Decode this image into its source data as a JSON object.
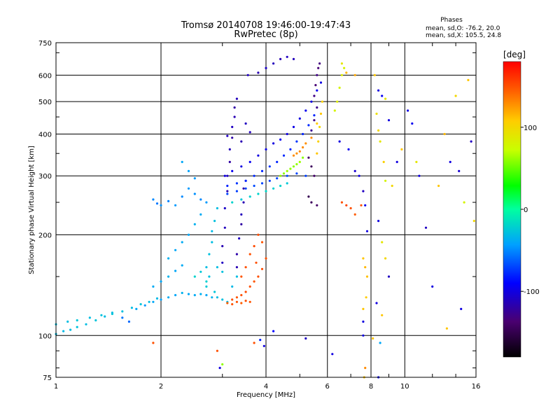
{
  "chart_data": {
    "type": "scatter",
    "title": "Tromsø 20140708 19:46:00-19:47:43",
    "subtitle": "RwPretec (8p)",
    "xlabel": "Frequency [MHz]",
    "ylabel": "Stationary phase Virtual Height [km]",
    "x_scale": "log",
    "y_scale": "log",
    "xlim": [
      1,
      16
    ],
    "ylim": [
      75,
      750
    ],
    "x_ticks": [
      1,
      2,
      4,
      6,
      8,
      10,
      16
    ],
    "x_tick_labels": [
      "1",
      "2",
      "4",
      "6",
      "8",
      "10",
      "16"
    ],
    "y_ticks": [
      75,
      100,
      200,
      300,
      400,
      500,
      600,
      750
    ],
    "y_tick_labels": [
      "75",
      "100",
      "200",
      "300",
      "400",
      "500",
      "600",
      "750"
    ],
    "grid": true,
    "stats": {
      "heading": "Phases",
      "line_o": "mean, sd,O: -76.2, 20.0",
      "line_x": "mean, sd,X: 105.5, 24.8"
    },
    "colorbar": {
      "label": "[deg]",
      "range": [
        -180,
        180
      ],
      "ticks": [
        100,
        0,
        -100
      ],
      "tick_labels": [
        "100",
        "0",
        "-100"
      ]
    },
    "points": [
      [
        1.0,
        101,
        -30
      ],
      [
        1.05,
        103,
        -32
      ],
      [
        1.1,
        104,
        -30
      ],
      [
        1.15,
        106,
        -28
      ],
      [
        1.22,
        108,
        -30
      ],
      [
        1.3,
        111,
        -27
      ],
      [
        1.38,
        114,
        -30
      ],
      [
        1.45,
        116,
        -25
      ],
      [
        1.55,
        118,
        -28
      ],
      [
        1.65,
        121,
        -30
      ],
      [
        1.75,
        124,
        -27
      ],
      [
        1.85,
        126,
        -30
      ],
      [
        1.95,
        129,
        -32
      ],
      [
        1.0,
        108,
        -28
      ],
      [
        1.08,
        110,
        -30
      ],
      [
        1.15,
        111,
        -26
      ],
      [
        1.25,
        113,
        -30
      ],
      [
        1.35,
        115,
        -28
      ],
      [
        1.45,
        117,
        -30
      ],
      [
        1.55,
        113,
        -55
      ],
      [
        1.62,
        110,
        -60
      ],
      [
        1.7,
        120,
        -40
      ],
      [
        1.8,
        123,
        -45
      ],
      [
        1.9,
        126,
        -40
      ],
      [
        2.0,
        128,
        -42
      ],
      [
        2.1,
        130,
        -38
      ],
      [
        2.2,
        132,
        -40
      ],
      [
        2.3,
        134,
        -35
      ],
      [
        2.4,
        133,
        -40
      ],
      [
        2.5,
        132,
        -38
      ],
      [
        2.6,
        133,
        -36
      ],
      [
        2.7,
        132,
        -40
      ],
      [
        2.8,
        130,
        -35
      ],
      [
        1.9,
        140,
        -38
      ],
      [
        2.0,
        145,
        -40
      ],
      [
        2.1,
        150,
        -35
      ],
      [
        2.2,
        156,
        -40
      ],
      [
        2.3,
        162,
        -38
      ],
      [
        2.1,
        170,
        -36
      ],
      [
        2.2,
        180,
        -40
      ],
      [
        2.3,
        190,
        -38
      ],
      [
        2.4,
        200,
        -40
      ],
      [
        2.5,
        215,
        -36
      ],
      [
        2.6,
        230,
        -38
      ],
      [
        1.9,
        255,
        -50
      ],
      [
        1.95,
        248,
        -55
      ],
      [
        2.0,
        245,
        -48
      ],
      [
        2.1,
        252,
        -52
      ],
      [
        2.2,
        245,
        -45
      ],
      [
        2.3,
        260,
        -50
      ],
      [
        2.4,
        275,
        -45
      ],
      [
        2.5,
        265,
        -48
      ],
      [
        2.6,
        255,
        -50
      ],
      [
        2.7,
        250,
        -45
      ],
      [
        2.3,
        330,
        -40
      ],
      [
        2.4,
        310,
        -42
      ],
      [
        2.5,
        295,
        -45
      ],
      [
        2.7,
        160,
        -30
      ],
      [
        2.75,
        175,
        -28
      ],
      [
        2.8,
        190,
        -30
      ],
      [
        2.8,
        205,
        -32
      ],
      [
        2.85,
        220,
        -28
      ],
      [
        2.9,
        240,
        -30
      ],
      [
        2.7,
        140,
        -25
      ],
      [
        2.75,
        150,
        -28
      ],
      [
        2.85,
        135,
        -26
      ],
      [
        2.9,
        130,
        -30
      ],
      [
        3.0,
        128,
        -28
      ],
      [
        3.1,
        126,
        -30
      ],
      [
        3.2,
        140,
        -32
      ],
      [
        3.3,
        150,
        -30
      ],
      [
        3.0,
        165,
        -110
      ],
      [
        3.0,
        185,
        -115
      ],
      [
        3.05,
        210,
        -112
      ],
      [
        3.05,
        240,
        -108
      ],
      [
        3.1,
        270,
        -115
      ],
      [
        3.1,
        300,
        -110
      ],
      [
        3.15,
        330,
        -120
      ],
      [
        3.15,
        360,
        -112
      ],
      [
        3.2,
        390,
        -118
      ],
      [
        3.2,
        420,
        -110
      ],
      [
        3.25,
        450,
        -115
      ],
      [
        3.25,
        480,
        -120
      ],
      [
        3.3,
        510,
        -112
      ],
      [
        3.3,
        160,
        -115
      ],
      [
        3.3,
        175,
        -118
      ],
      [
        3.35,
        195,
        -110
      ],
      [
        3.4,
        215,
        -120
      ],
      [
        3.4,
        230,
        -112
      ],
      [
        3.45,
        250,
        -115
      ],
      [
        3.45,
        275,
        -120
      ],
      [
        3.5,
        290,
        -108
      ],
      [
        3.05,
        300,
        -100
      ],
      [
        3.2,
        310,
        -95
      ],
      [
        3.4,
        320,
        -100
      ],
      [
        3.6,
        330,
        -95
      ],
      [
        3.8,
        345,
        -100
      ],
      [
        4.0,
        360,
        -98
      ],
      [
        4.2,
        375,
        -100
      ],
      [
        4.4,
        385,
        -95
      ],
      [
        4.6,
        400,
        -100
      ],
      [
        4.8,
        420,
        -98
      ],
      [
        5.0,
        445,
        -100
      ],
      [
        5.2,
        470,
        -95
      ],
      [
        5.4,
        500,
        -100
      ],
      [
        5.6,
        540,
        -95
      ],
      [
        5.75,
        570,
        -100
      ],
      [
        3.1,
        280,
        -80
      ],
      [
        3.3,
        285,
        -75
      ],
      [
        3.5,
        290,
        -80
      ],
      [
        3.7,
        300,
        -78
      ],
      [
        3.9,
        310,
        -80
      ],
      [
        4.1,
        320,
        -75
      ],
      [
        4.3,
        330,
        -80
      ],
      [
        4.5,
        345,
        -78
      ],
      [
        4.7,
        360,
        -80
      ],
      [
        4.9,
        380,
        -75
      ],
      [
        5.1,
        400,
        -80
      ],
      [
        5.3,
        425,
        -78
      ],
      [
        5.5,
        455,
        -80
      ],
      [
        3.1,
        265,
        -70
      ],
      [
        3.3,
        270,
        -72
      ],
      [
        3.5,
        275,
        -70
      ],
      [
        3.7,
        280,
        -68
      ],
      [
        3.9,
        285,
        -70
      ],
      [
        4.1,
        290,
        -72
      ],
      [
        4.3,
        295,
        -70
      ],
      [
        4.6,
        300,
        -68
      ],
      [
        4.9,
        305,
        -70
      ],
      [
        5.2,
        300,
        -72
      ],
      [
        4.4,
        300,
        60
      ],
      [
        4.5,
        305,
        58
      ],
      [
        4.6,
        310,
        62
      ],
      [
        4.7,
        315,
        60
      ],
      [
        4.8,
        320,
        58
      ],
      [
        4.9,
        325,
        60
      ],
      [
        5.0,
        330,
        62
      ],
      [
        5.1,
        340,
        58
      ],
      [
        4.8,
        345,
        130
      ],
      [
        4.9,
        350,
        128
      ],
      [
        5.0,
        355,
        132
      ],
      [
        5.1,
        365,
        130
      ],
      [
        5.2,
        375,
        128
      ],
      [
        5.4,
        390,
        130
      ],
      [
        3.2,
        128,
        150
      ],
      [
        3.3,
        130,
        148
      ],
      [
        3.4,
        132,
        150
      ],
      [
        3.5,
        135,
        152
      ],
      [
        3.6,
        140,
        150
      ],
      [
        3.7,
        145,
        148
      ],
      [
        3.8,
        150,
        150
      ],
      [
        3.9,
        158,
        152
      ],
      [
        4.0,
        170,
        150
      ],
      [
        3.9,
        190,
        148
      ],
      [
        3.8,
        200,
        150
      ],
      [
        3.7,
        185,
        152
      ],
      [
        3.5,
        160,
        150
      ],
      [
        3.4,
        150,
        148
      ],
      [
        3.6,
        175,
        150
      ],
      [
        3.75,
        165,
        150
      ],
      [
        3.1,
        125,
        145
      ],
      [
        3.2,
        124,
        148
      ],
      [
        3.3,
        126,
        150
      ],
      [
        3.4,
        125,
        145
      ],
      [
        3.5,
        127,
        150
      ],
      [
        3.6,
        126,
        148
      ],
      [
        5.5,
        520,
        -130
      ],
      [
        5.55,
        560,
        -135
      ],
      [
        5.6,
        600,
        -130
      ],
      [
        5.65,
        630,
        -135
      ],
      [
        5.7,
        650,
        -132
      ],
      [
        5.6,
        480,
        -128
      ],
      [
        5.5,
        440,
        -130
      ],
      [
        5.4,
        410,
        -125
      ],
      [
        5.3,
        340,
        -140
      ],
      [
        5.4,
        320,
        -145
      ],
      [
        5.5,
        300,
        -140
      ],
      [
        5.3,
        260,
        -150
      ],
      [
        5.4,
        250,
        -145
      ],
      [
        5.6,
        245,
        -140
      ],
      [
        5.6,
        350,
        110
      ],
      [
        5.65,
        380,
        105
      ],
      [
        5.7,
        420,
        100
      ],
      [
        5.6,
        430,
        108
      ],
      [
        5.75,
        460,
        110
      ],
      [
        5.8,
        500,
        105
      ],
      [
        6.3,
        470,
        80
      ],
      [
        6.4,
        500,
        85
      ],
      [
        6.5,
        550,
        80
      ],
      [
        6.6,
        600,
        85
      ],
      [
        6.7,
        630,
        80
      ],
      [
        6.6,
        650,
        90
      ],
      [
        6.8,
        610,
        115
      ],
      [
        7.2,
        600,
        120
      ],
      [
        6.6,
        250,
        150
      ],
      [
        6.8,
        245,
        155
      ],
      [
        7.0,
        240,
        150
      ],
      [
        7.2,
        230,
        145
      ],
      [
        7.5,
        245,
        150
      ],
      [
        6.5,
        380,
        -100
      ],
      [
        6.9,
        360,
        -95
      ],
      [
        7.2,
        310,
        -105
      ],
      [
        7.4,
        300,
        -100
      ],
      [
        7.6,
        270,
        -110
      ],
      [
        7.7,
        245,
        -95
      ],
      [
        7.8,
        205,
        -100
      ],
      [
        7.6,
        170,
        110
      ],
      [
        7.7,
        160,
        115
      ],
      [
        7.8,
        150,
        112
      ],
      [
        7.75,
        130,
        108
      ],
      [
        7.6,
        120,
        110
      ],
      [
        7.6,
        110,
        -100
      ],
      [
        7.7,
        80,
        130
      ],
      [
        7.65,
        75,
        110
      ],
      [
        8.2,
        600,
        110
      ],
      [
        8.4,
        540,
        -100
      ],
      [
        8.6,
        520,
        -95
      ],
      [
        8.8,
        510,
        90
      ],
      [
        9.0,
        440,
        -100
      ],
      [
        8.3,
        460,
        95
      ],
      [
        8.4,
        410,
        100
      ],
      [
        8.5,
        380,
        90
      ],
      [
        8.7,
        330,
        105
      ],
      [
        8.8,
        290,
        80
      ],
      [
        8.4,
        220,
        -100
      ],
      [
        8.6,
        190,
        90
      ],
      [
        8.8,
        170,
        100
      ],
      [
        9.0,
        150,
        -110
      ],
      [
        8.3,
        125,
        -100
      ],
      [
        8.6,
        115,
        110
      ],
      [
        8.5,
        95,
        -40
      ],
      [
        8.4,
        75,
        -90
      ],
      [
        9.2,
        280,
        100
      ],
      [
        9.5,
        330,
        -100
      ],
      [
        9.8,
        360,
        110
      ],
      [
        10.2,
        470,
        -100
      ],
      [
        10.5,
        430,
        -95
      ],
      [
        10.8,
        330,
        90
      ],
      [
        11.0,
        300,
        -100
      ],
      [
        11.5,
        210,
        -110
      ],
      [
        12.0,
        140,
        -100
      ],
      [
        12.5,
        280,
        110
      ],
      [
        13.0,
        400,
        115
      ],
      [
        13.5,
        330,
        -100
      ],
      [
        14.0,
        520,
        100
      ],
      [
        14.3,
        310,
        -105
      ],
      [
        14.8,
        250,
        80
      ],
      [
        15.2,
        580,
        110
      ],
      [
        15.5,
        380,
        -110
      ],
      [
        15.8,
        220,
        100
      ],
      [
        13.2,
        105,
        110
      ],
      [
        14.5,
        120,
        -100
      ],
      [
        1.9,
        95,
        150
      ],
      [
        2.9,
        90,
        150
      ],
      [
        2.95,
        80,
        -100
      ],
      [
        3.0,
        82,
        60
      ],
      [
        3.7,
        95,
        150
      ],
      [
        3.85,
        97,
        -80
      ],
      [
        3.95,
        93,
        -100
      ],
      [
        4.2,
        103,
        -90
      ],
      [
        5.2,
        98,
        -110
      ],
      [
        6.2,
        88,
        -100
      ],
      [
        7.6,
        100,
        -100
      ],
      [
        8.1,
        98,
        110
      ],
      [
        3.1,
        395,
        -110
      ],
      [
        3.4,
        380,
        -115
      ],
      [
        3.6,
        405,
        -112
      ],
      [
        3.5,
        430,
        -110
      ],
      [
        3.55,
        600,
        -110
      ],
      [
        3.8,
        610,
        -115
      ],
      [
        4.0,
        630,
        -108
      ],
      [
        4.2,
        650,
        -112
      ],
      [
        4.4,
        670,
        -115
      ],
      [
        4.6,
        680,
        -110
      ],
      [
        4.8,
        670,
        -112
      ],
      [
        3.2,
        250,
        -20
      ],
      [
        3.4,
        255,
        -25
      ],
      [
        3.6,
        260,
        -22
      ],
      [
        3.8,
        265,
        -20
      ],
      [
        4.0,
        270,
        -18
      ],
      [
        4.2,
        275,
        -22
      ],
      [
        4.4,
        280,
        -20
      ],
      [
        4.6,
        285,
        -25
      ],
      [
        2.5,
        150,
        -20
      ],
      [
        2.6,
        155,
        -25
      ],
      [
        2.7,
        145,
        -22
      ],
      [
        2.9,
        160,
        -30
      ],
      [
        3.0,
        155,
        -28
      ]
    ]
  }
}
